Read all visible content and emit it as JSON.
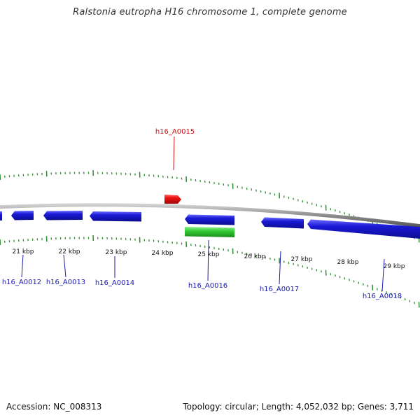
{
  "title": "Ralstonia eutropha H16 chromosome 1, complete genome",
  "footer": {
    "accession": "Accession: NC_008313",
    "summary": "Topology: circular; Length: 4,052,032 bp; Genes: 3,711"
  },
  "ruler_labels": [
    "21 kbp",
    "22 kbp",
    "23 kbp",
    "24 kbp",
    "25 kbp",
    "26 kbp",
    "27 kbp",
    "28 kbp",
    "29 kbp"
  ],
  "genes": [
    {
      "name": "h16_A0012",
      "strand": "-",
      "highlight": false
    },
    {
      "name": "h16_A0013",
      "strand": "-",
      "highlight": false
    },
    {
      "name": "h16_A0014",
      "strand": "-",
      "highlight": false
    },
    {
      "name": "h16_A0015",
      "strand": "+",
      "highlight": true
    },
    {
      "name": "h16_A0016",
      "strand": "-",
      "highlight": false
    },
    {
      "name": "h16_A0017",
      "strand": "-",
      "highlight": false
    },
    {
      "name": "h16_A0018",
      "strand": "-",
      "highlight": false
    }
  ],
  "colors": {
    "gene_blue": "#1a1ad6",
    "gene_red": "#ee1111",
    "gene_green": "#33cc33",
    "label_blue": "#1a1ab0",
    "label_red": "#cc1111",
    "tick_green": "#2e8b2e",
    "backbone_gray": "#808080"
  }
}
